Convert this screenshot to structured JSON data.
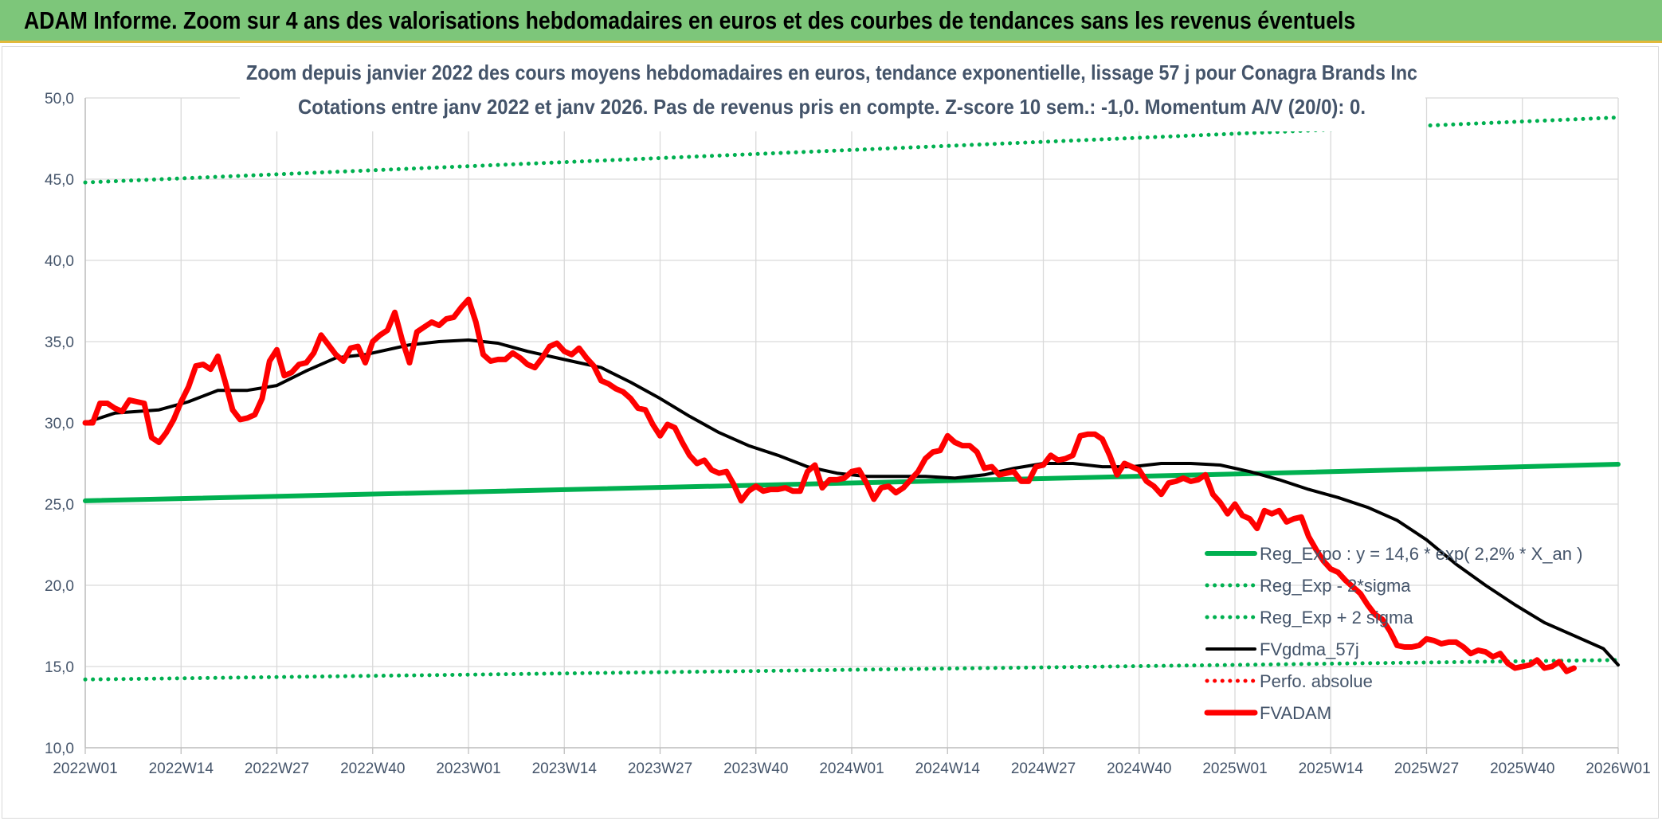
{
  "banner": {
    "title": "ADAM Informe. Zoom sur 4 ans des valorisations hebdomadaires en euros et des courbes de tendances sans les revenus éventuels"
  },
  "colors": {
    "banner_bg": "#7dc67a",
    "reg_expo": "#00b050",
    "fvgdma": "#000000",
    "fvadam": "#ff0000",
    "perfo": "#ff0000",
    "text": "#44546a",
    "grid": "#d9d9d9"
  },
  "chart_data": {
    "type": "line",
    "title": "Zoom depuis janvier 2022 des cours moyens hebdomadaires en euros, tendance exponentielle, lissage 57 j pour Conagra Brands Inc",
    "subtitle": "Cotations entre janv 2022 et janv 2026. Pas de revenus pris en compte. Z-score 10 sem.: -1,0. Momentum A/V (20/0): 0.",
    "xlabel": "",
    "ylabel": "",
    "ylim": [
      10,
      50
    ],
    "yticks": [
      "10,0",
      "15,0",
      "20,0",
      "25,0",
      "30,0",
      "35,0",
      "40,0",
      "45,0",
      "50,0"
    ],
    "x_tick_labels": [
      "2022W01",
      "2022W14",
      "2022W27",
      "2022W40",
      "2023W01",
      "2023W14",
      "2023W27",
      "2023W40",
      "2024W01",
      "2024W14",
      "2024W27",
      "2024W40",
      "2025W01",
      "2025W14",
      "2025W27",
      "2025W40",
      "2026W01"
    ],
    "x_range_weeks": [
      0,
      208
    ],
    "grid": true,
    "legend_position": "bottom-right",
    "series": [
      {
        "name": "Reg_Expo : y = 14,6 * exp( 2,2% *  X_an )",
        "style": "solid",
        "color": "#00b050",
        "points": [
          [
            0,
            25.2
          ],
          [
            52,
            25.75
          ],
          [
            104,
            26.3
          ],
          [
            156,
            26.85
          ],
          [
            208,
            27.45
          ]
        ]
      },
      {
        "name": "Reg_Exp - 2*sigma",
        "style": "dotted",
        "color": "#00b050",
        "points": [
          [
            0,
            14.2
          ],
          [
            52,
            14.5
          ],
          [
            104,
            14.8
          ],
          [
            156,
            15.1
          ],
          [
            208,
            15.4
          ]
        ]
      },
      {
        "name": "Reg_Exp + 2 sigma",
        "style": "dotted",
        "color": "#00b050",
        "points": [
          [
            0,
            44.8
          ],
          [
            52,
            45.8
          ],
          [
            104,
            46.8
          ],
          [
            156,
            47.8
          ],
          [
            208,
            48.8
          ]
        ]
      },
      {
        "name": "FVgdma_57j",
        "style": "solid",
        "color": "#000000",
        "points": [
          [
            0,
            30.0
          ],
          [
            4,
            30.6
          ],
          [
            10,
            30.8
          ],
          [
            14,
            31.3
          ],
          [
            18,
            32.0
          ],
          [
            22,
            32.0
          ],
          [
            26,
            32.3
          ],
          [
            30,
            33.2
          ],
          [
            34,
            34.0
          ],
          [
            38,
            34.2
          ],
          [
            44,
            34.8
          ],
          [
            48,
            35.0
          ],
          [
            52,
            35.1
          ],
          [
            56,
            34.9
          ],
          [
            60,
            34.4
          ],
          [
            66,
            33.8
          ],
          [
            70,
            33.4
          ],
          [
            74,
            32.5
          ],
          [
            78,
            31.5
          ],
          [
            82,
            30.4
          ],
          [
            86,
            29.4
          ],
          [
            90,
            28.6
          ],
          [
            94,
            28.0
          ],
          [
            98,
            27.3
          ],
          [
            102,
            26.9
          ],
          [
            106,
            26.7
          ],
          [
            110,
            26.7
          ],
          [
            114,
            26.7
          ],
          [
            118,
            26.6
          ],
          [
            122,
            26.8
          ],
          [
            126,
            27.2
          ],
          [
            130,
            27.5
          ],
          [
            134,
            27.5
          ],
          [
            138,
            27.3
          ],
          [
            142,
            27.3
          ],
          [
            146,
            27.5
          ],
          [
            150,
            27.5
          ],
          [
            154,
            27.4
          ],
          [
            158,
            27.0
          ],
          [
            162,
            26.5
          ],
          [
            166,
            25.9
          ],
          [
            170,
            25.4
          ],
          [
            174,
            24.8
          ],
          [
            178,
            24.0
          ],
          [
            182,
            22.8
          ],
          [
            186,
            21.3
          ],
          [
            190,
            20.0
          ],
          [
            194,
            18.8
          ],
          [
            198,
            17.7
          ],
          [
            202,
            16.9
          ],
          [
            206,
            16.1
          ],
          [
            210,
            15.6
          ],
          [
            214,
            15.2
          ],
          [
            208,
            15.1
          ]
        ]
      },
      {
        "name": "Perfo. absolue",
        "style": "dotted",
        "color": "#ff0000",
        "points": []
      },
      {
        "name": "FVADAM",
        "style": "solid-thick",
        "color": "#ff0000",
        "points": [
          [
            0,
            30.0
          ],
          [
            1,
            30.0
          ],
          [
            2,
            31.2
          ],
          [
            3,
            31.2
          ],
          [
            4,
            30.9
          ],
          [
            5,
            30.7
          ],
          [
            6,
            31.4
          ],
          [
            7,
            31.3
          ],
          [
            8,
            31.2
          ],
          [
            9,
            29.1
          ],
          [
            10,
            28.8
          ],
          [
            11,
            29.4
          ],
          [
            12,
            30.2
          ],
          [
            13,
            31.3
          ],
          [
            14,
            32.2
          ],
          [
            15,
            33.5
          ],
          [
            16,
            33.6
          ],
          [
            17,
            33.3
          ],
          [
            18,
            34.1
          ],
          [
            19,
            32.5
          ],
          [
            20,
            30.8
          ],
          [
            21,
            30.2
          ],
          [
            22,
            30.3
          ],
          [
            23,
            30.5
          ],
          [
            24,
            31.5
          ],
          [
            25,
            33.8
          ],
          [
            26,
            34.5
          ],
          [
            27,
            32.9
          ],
          [
            28,
            33.1
          ],
          [
            29,
            33.6
          ],
          [
            30,
            33.7
          ],
          [
            31,
            34.3
          ],
          [
            32,
            35.4
          ],
          [
            33,
            34.8
          ],
          [
            34,
            34.2
          ],
          [
            35,
            33.8
          ],
          [
            36,
            34.6
          ],
          [
            37,
            34.7
          ],
          [
            38,
            33.7
          ],
          [
            39,
            35.0
          ],
          [
            40,
            35.4
          ],
          [
            41,
            35.7
          ],
          [
            42,
            36.8
          ],
          [
            43,
            35.1
          ],
          [
            44,
            33.7
          ],
          [
            45,
            35.6
          ],
          [
            46,
            35.9
          ],
          [
            47,
            36.2
          ],
          [
            48,
            36.0
          ],
          [
            49,
            36.4
          ],
          [
            50,
            36.5
          ],
          [
            51,
            37.1
          ],
          [
            52,
            37.6
          ],
          [
            53,
            36.2
          ],
          [
            54,
            34.2
          ],
          [
            55,
            33.8
          ],
          [
            56,
            33.9
          ],
          [
            57,
            33.9
          ],
          [
            58,
            34.3
          ],
          [
            59,
            34.0
          ],
          [
            60,
            33.6
          ],
          [
            61,
            33.4
          ],
          [
            62,
            34.0
          ],
          [
            63,
            34.7
          ],
          [
            64,
            34.9
          ],
          [
            65,
            34.4
          ],
          [
            66,
            34.2
          ],
          [
            67,
            34.6
          ],
          [
            68,
            34.0
          ],
          [
            69,
            33.5
          ],
          [
            70,
            32.6
          ],
          [
            71,
            32.4
          ],
          [
            72,
            32.1
          ],
          [
            73,
            31.9
          ],
          [
            74,
            31.5
          ],
          [
            75,
            30.9
          ],
          [
            76,
            30.8
          ],
          [
            77,
            29.9
          ],
          [
            78,
            29.2
          ],
          [
            79,
            29.9
          ],
          [
            80,
            29.7
          ],
          [
            81,
            28.8
          ],
          [
            82,
            28.0
          ],
          [
            83,
            27.5
          ],
          [
            84,
            27.7
          ],
          [
            85,
            27.1
          ],
          [
            86,
            26.9
          ],
          [
            87,
            27.0
          ],
          [
            88,
            26.2
          ],
          [
            89,
            25.2
          ],
          [
            90,
            25.8
          ],
          [
            91,
            26.1
          ],
          [
            92,
            25.8
          ],
          [
            93,
            25.9
          ],
          [
            94,
            25.9
          ],
          [
            95,
            26.0
          ],
          [
            96,
            25.8
          ],
          [
            97,
            25.8
          ],
          [
            98,
            27.0
          ],
          [
            99,
            27.4
          ],
          [
            100,
            26.0
          ],
          [
            101,
            26.5
          ],
          [
            102,
            26.5
          ],
          [
            103,
            26.6
          ],
          [
            104,
            27.0
          ],
          [
            105,
            27.1
          ],
          [
            106,
            26.3
          ],
          [
            107,
            25.3
          ],
          [
            108,
            26.0
          ],
          [
            109,
            26.1
          ],
          [
            110,
            25.7
          ],
          [
            111,
            26.0
          ],
          [
            112,
            26.5
          ],
          [
            113,
            27.0
          ],
          [
            114,
            27.8
          ],
          [
            115,
            28.2
          ],
          [
            116,
            28.3
          ],
          [
            117,
            29.2
          ],
          [
            118,
            28.8
          ],
          [
            119,
            28.6
          ],
          [
            120,
            28.6
          ],
          [
            121,
            28.2
          ],
          [
            122,
            27.2
          ],
          [
            123,
            27.3
          ],
          [
            124,
            26.8
          ],
          [
            125,
            26.9
          ],
          [
            126,
            27.0
          ],
          [
            127,
            26.4
          ],
          [
            128,
            26.4
          ],
          [
            129,
            27.3
          ],
          [
            130,
            27.4
          ],
          [
            131,
            28.0
          ],
          [
            132,
            27.7
          ],
          [
            133,
            27.8
          ],
          [
            134,
            28.0
          ],
          [
            135,
            29.2
          ],
          [
            136,
            29.3
          ],
          [
            137,
            29.3
          ],
          [
            138,
            29.0
          ],
          [
            139,
            28.0
          ],
          [
            140,
            26.8
          ],
          [
            141,
            27.5
          ],
          [
            142,
            27.3
          ],
          [
            143,
            27.1
          ],
          [
            144,
            26.4
          ],
          [
            145,
            26.1
          ],
          [
            146,
            25.6
          ],
          [
            147,
            26.3
          ],
          [
            148,
            26.4
          ],
          [
            149,
            26.6
          ],
          [
            150,
            26.4
          ],
          [
            151,
            26.5
          ],
          [
            152,
            26.8
          ],
          [
            153,
            25.6
          ],
          [
            154,
            25.1
          ],
          [
            155,
            24.4
          ],
          [
            156,
            25.0
          ],
          [
            157,
            24.3
          ],
          [
            158,
            24.1
          ],
          [
            159,
            23.5
          ],
          [
            160,
            24.6
          ],
          [
            161,
            24.4
          ],
          [
            162,
            24.6
          ],
          [
            163,
            23.9
          ],
          [
            164,
            24.1
          ],
          [
            165,
            24.2
          ],
          [
            166,
            23.0
          ],
          [
            167,
            22.2
          ],
          [
            168,
            21.5
          ],
          [
            169,
            21.0
          ],
          [
            170,
            20.8
          ],
          [
            171,
            20.3
          ],
          [
            172,
            19.9
          ],
          [
            173,
            19.5
          ],
          [
            174,
            18.8
          ],
          [
            175,
            18.2
          ],
          [
            176,
            17.9
          ],
          [
            177,
            17.2
          ],
          [
            178,
            16.3
          ],
          [
            179,
            16.2
          ],
          [
            180,
            16.2
          ],
          [
            181,
            16.3
          ],
          [
            182,
            16.7
          ],
          [
            183,
            16.6
          ],
          [
            184,
            16.4
          ],
          [
            185,
            16.5
          ],
          [
            186,
            16.5
          ],
          [
            187,
            16.2
          ],
          [
            188,
            15.8
          ],
          [
            189,
            16.0
          ],
          [
            190,
            15.9
          ],
          [
            191,
            15.6
          ],
          [
            192,
            15.8
          ],
          [
            193,
            15.2
          ],
          [
            194,
            14.9
          ],
          [
            195,
            15.0
          ],
          [
            196,
            15.1
          ],
          [
            197,
            15.4
          ],
          [
            198,
            14.9
          ],
          [
            199,
            15.0
          ],
          [
            200,
            15.3
          ],
          [
            201,
            14.7
          ],
          [
            202,
            14.9
          ]
        ]
      }
    ]
  }
}
